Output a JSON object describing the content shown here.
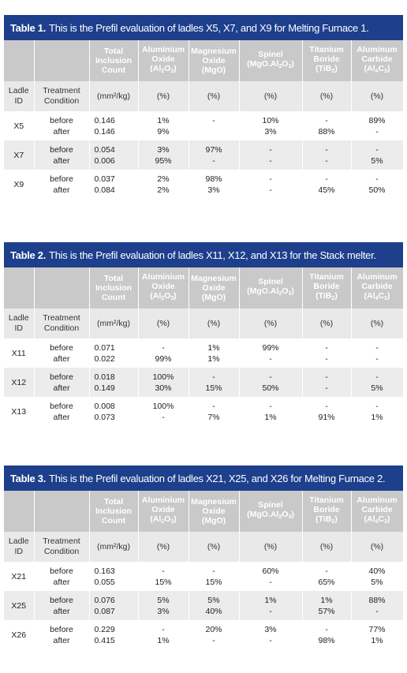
{
  "tables": [
    {
      "num": "Table 1.",
      "title": "This is the Prefil evaluation of ladles X5, X7, and X9 for Melting Furnace 1.",
      "rows": [
        {
          "id": "X5",
          "cond": [
            "before",
            "after"
          ],
          "count": [
            "0.146",
            "0.146"
          ],
          "al2o3": [
            "1%",
            "9%"
          ],
          "mgo": [
            "-",
            ""
          ],
          "spinel": [
            "10%",
            "3%"
          ],
          "tib2": [
            "-",
            "88%"
          ],
          "al4c3": [
            "89%",
            "-"
          ]
        },
        {
          "id": "X7",
          "cond": [
            "before",
            "after"
          ],
          "count": [
            "0.054",
            "0.006"
          ],
          "al2o3": [
            "3%",
            "95%"
          ],
          "mgo": [
            "97%",
            "-"
          ],
          "spinel": [
            "-",
            "-"
          ],
          "tib2": [
            "-",
            "-"
          ],
          "al4c3": [
            "-",
            "5%"
          ]
        },
        {
          "id": "X9",
          "cond": [
            "before",
            "after"
          ],
          "count": [
            "0.037",
            "0.084"
          ],
          "al2o3": [
            "2%",
            "2%"
          ],
          "mgo": [
            "98%",
            "3%"
          ],
          "spinel": [
            "-",
            "-"
          ],
          "tib2": [
            "-",
            "45%"
          ],
          "al4c3": [
            "-",
            "50%"
          ]
        }
      ]
    },
    {
      "num": "Table 2.",
      "title": "This is the Prefil evaluation of ladles X11, X12, and X13 for the Stack melter.",
      "rows": [
        {
          "id": "X11",
          "cond": [
            "before",
            "after"
          ],
          "count": [
            "0.071",
            "0.022"
          ],
          "al2o3": [
            "-",
            "99%"
          ],
          "mgo": [
            "1%",
            "1%"
          ],
          "spinel": [
            "99%",
            "-"
          ],
          "tib2": [
            "-",
            "-"
          ],
          "al4c3": [
            "-",
            "-"
          ]
        },
        {
          "id": "X12",
          "cond": [
            "before",
            "after"
          ],
          "count": [
            "0.018",
            "0.149"
          ],
          "al2o3": [
            "100%",
            "30%"
          ],
          "mgo": [
            "-",
            "15%"
          ],
          "spinel": [
            "-",
            "50%"
          ],
          "tib2": [
            "-",
            "-"
          ],
          "al4c3": [
            "-",
            "5%"
          ]
        },
        {
          "id": "X13",
          "cond": [
            "before",
            "after"
          ],
          "count": [
            "0.008",
            "0.073"
          ],
          "al2o3": [
            "100%",
            "-"
          ],
          "mgo": [
            "-",
            "7%"
          ],
          "spinel": [
            "-",
            "1%"
          ],
          "tib2": [
            "-",
            "91%"
          ],
          "al4c3": [
            "-",
            "1%"
          ]
        }
      ]
    },
    {
      "num": "Table 3.",
      "title": "This is the Prefil evaluation of ladles X21, X25, and X26 for Melting Furnace 2.",
      "rows": [
        {
          "id": "X21",
          "cond": [
            "before",
            "after"
          ],
          "count": [
            "0.163",
            "0.055"
          ],
          "al2o3": [
            "-",
            "15%"
          ],
          "mgo": [
            "-",
            "15%"
          ],
          "spinel": [
            "60%",
            "-"
          ],
          "tib2": [
            "-",
            "65%"
          ],
          "al4c3": [
            "40%",
            "5%"
          ]
        },
        {
          "id": "X25",
          "cond": [
            "before",
            "after"
          ],
          "count": [
            "0.076",
            "0.087"
          ],
          "al2o3": [
            "5%",
            "3%"
          ],
          "mgo": [
            "5%",
            "40%"
          ],
          "spinel": [
            "1%",
            "-"
          ],
          "tib2": [
            "1%",
            "57%"
          ],
          "al4c3": [
            "88%",
            "-"
          ]
        },
        {
          "id": "X26",
          "cond": [
            "before",
            "after"
          ],
          "count": [
            "0.229",
            "0.415"
          ],
          "al2o3": [
            "-",
            "1%"
          ],
          "mgo": [
            "20%",
            "-"
          ],
          "spinel": [
            "3%",
            "-"
          ],
          "tib2": [
            "-",
            "98%"
          ],
          "al4c3": [
            "77%",
            "1%"
          ]
        }
      ]
    }
  ],
  "headers": {
    "count": [
      "Total",
      "Inclusion",
      "Count"
    ],
    "al2o3": [
      "Aluminium",
      "Oxide",
      "(Al2O3)"
    ],
    "mgo": [
      "Magnesium",
      "Oxide",
      "(MgO)"
    ],
    "spinel": [
      "Spinel",
      "(MgO.Al2O3)"
    ],
    "tib2": [
      "Titanium",
      "Boride",
      "(TiB2)"
    ],
    "al4c3": [
      "Aluminum",
      "Carbide",
      "(Al4C3)"
    ],
    "ladle_id": [
      "Ladle",
      "ID"
    ],
    "treatment": [
      "Treatment",
      "Condition"
    ],
    "count_unit": "(mm²/kg)",
    "pct": "(%)"
  },
  "colors": {
    "title_bg": "#1d3f8c",
    "header_bg": "#c9c9c9",
    "alt_row": "#ececec",
    "units_row": "#e9e9e9"
  }
}
